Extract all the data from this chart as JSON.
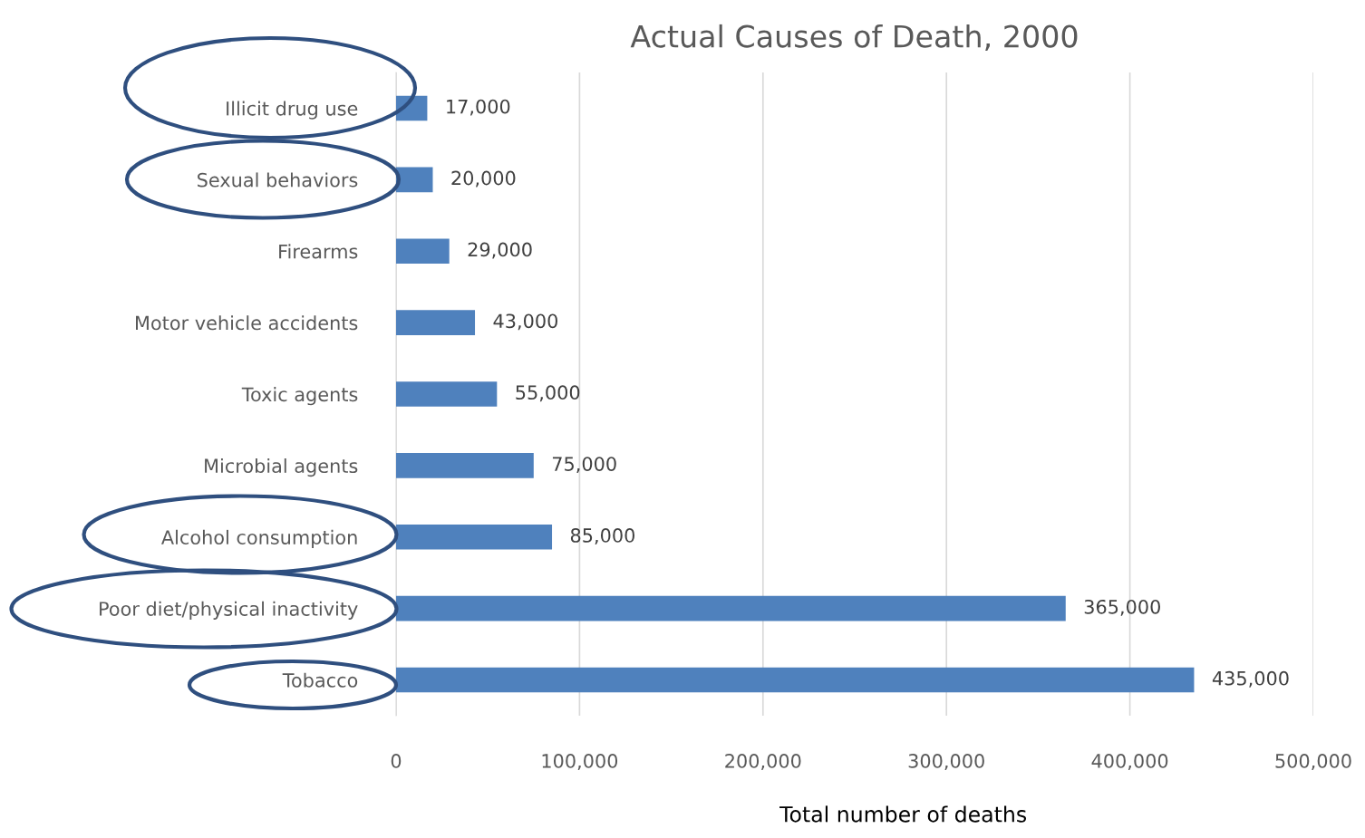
{
  "chart_data": {
    "type": "bar",
    "orientation": "horizontal",
    "title": "Actual Causes of Death, 2000",
    "xlabel": "Total number of deaths",
    "categories": [
      "Illicit drug use",
      "Sexual behaviors",
      "Firearms",
      "Motor vehicle accidents",
      "Toxic agents",
      "Microbial agents",
      "Alcohol consumption",
      "Poor diet/physical inactivity",
      "Tobacco"
    ],
    "values": [
      17000,
      20000,
      29000,
      43000,
      55000,
      75000,
      85000,
      365000,
      435000
    ],
    "color": "#4f81bd",
    "xlim": [
      0,
      500000
    ],
    "xticks": [
      0,
      {
        "value": 100000,
        "label": "100,000"
      },
      {
        "value": 200000,
        "label": "200,000"
      },
      {
        "value": 300000,
        "label": "300,000"
      },
      {
        "value": 400000,
        "label": "400,000"
      },
      {
        "value": 500000,
        "label": "500,000"
      }
    ],
    "value_labels": [
      "17,000",
      "20,000",
      "29,000",
      "43,000",
      "55,000",
      "75,000",
      "85,000",
      "365,000",
      "435,000"
    ],
    "grid": "x",
    "legend": false
  }
}
